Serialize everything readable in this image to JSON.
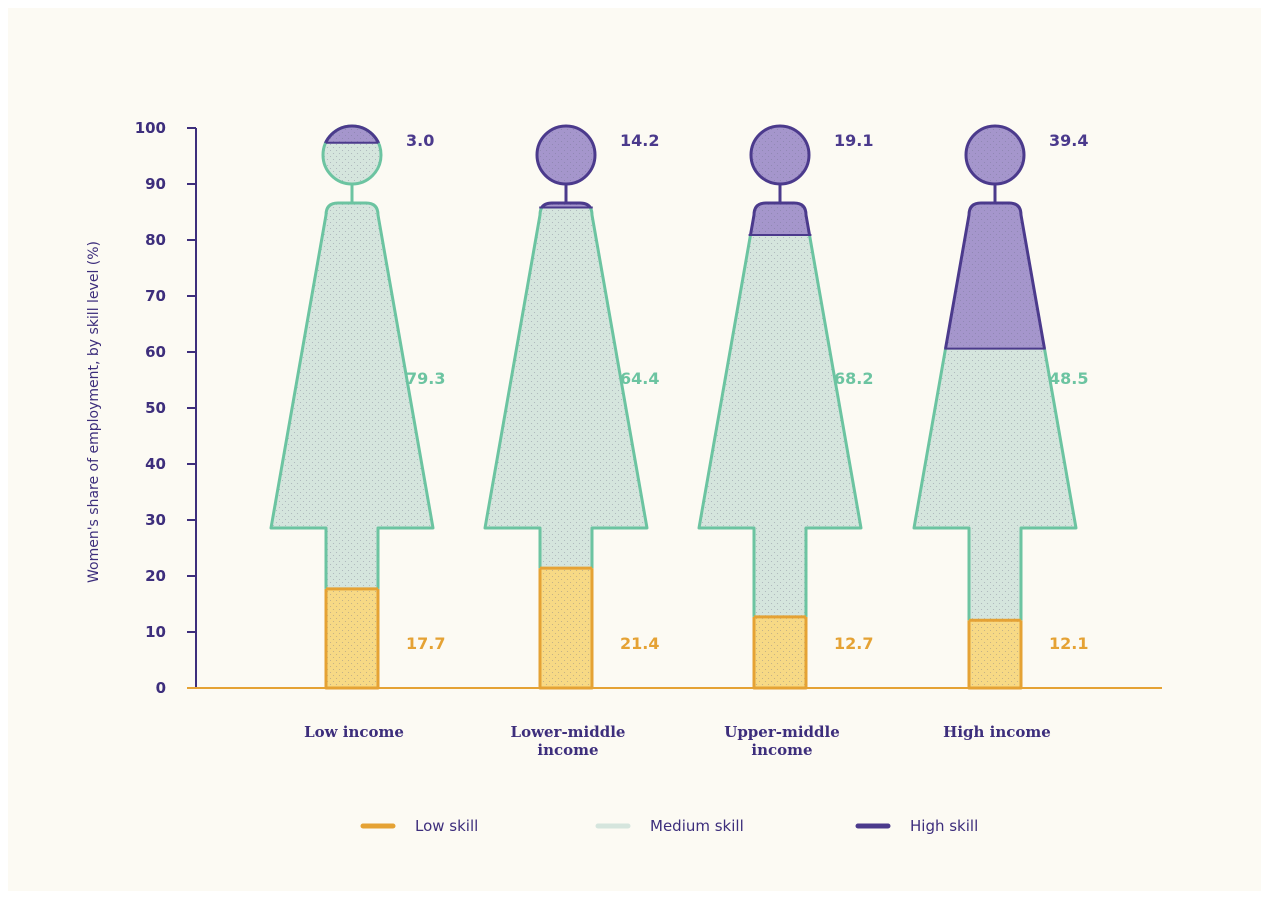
{
  "chart_data": {
    "type": "bar",
    "ylabel": "Women's share of employment, by skill level (%)",
    "ylim": [
      0,
      100
    ],
    "yticks": [
      "0",
      "10",
      "20",
      "30",
      "40",
      "50",
      "60",
      "70",
      "80",
      "90",
      "100"
    ],
    "categories": [
      [
        "Low income"
      ],
      [
        "Lower-middle",
        "income"
      ],
      [
        "Upper-middle",
        "income"
      ],
      [
        "High income"
      ]
    ],
    "series": [
      {
        "name": "Low skill",
        "values": [
          17.7,
          21.4,
          12.7,
          12.1
        ],
        "labels": [
          "17.7",
          "21.4",
          "12.7",
          "12.1"
        ]
      },
      {
        "name": "Medium skill",
        "values": [
          79.3,
          64.4,
          68.2,
          48.5
        ],
        "labels": [
          "79.3",
          "64.4",
          "68.2",
          "48.5"
        ]
      },
      {
        "name": "High skill",
        "values": [
          3.0,
          14.2,
          19.1,
          39.4
        ],
        "labels": [
          "3.0",
          "14.2",
          "19.1",
          "39.4"
        ]
      }
    ],
    "stacked": true,
    "legend_position": "bottom",
    "colors": {
      "low_stroke": "#e5a234",
      "low_fill": "#f7d985",
      "med_stroke": "#6cc4a1",
      "med_fill": "#d5e5dd",
      "high_stroke": "#4b3a8c",
      "high_fill": "#a596cc",
      "axis": "#3d2e7c",
      "baseline": "#e5a234"
    }
  }
}
